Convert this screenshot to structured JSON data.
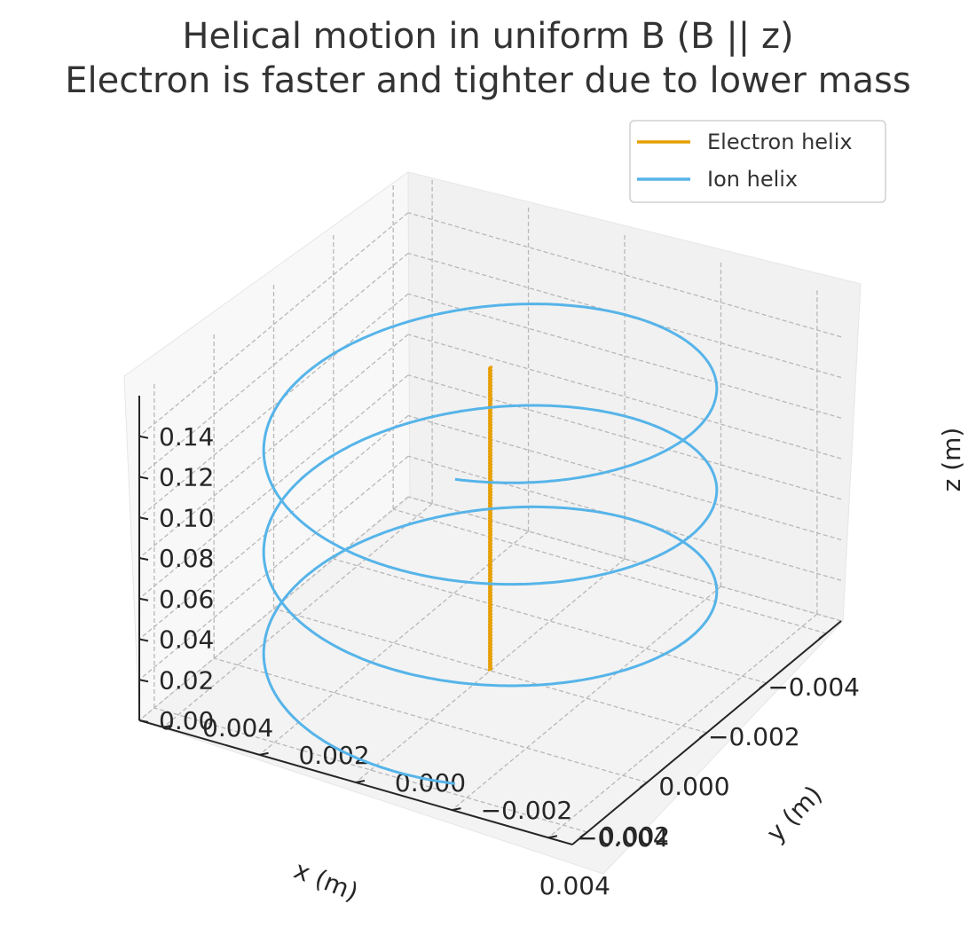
{
  "chart_data": {
    "type": "line3d",
    "title": "Helical motion in uniform B (B || z)",
    "subtitle": "Electron is faster and tighter due to lower mass",
    "xlabel": "x (m)",
    "ylabel": "y (m)",
    "zlabel": "z (m)",
    "xlim": [
      -0.0045,
      0.0045
    ],
    "ylim": [
      -0.0045,
      0.0045
    ],
    "zlim": [
      0.0,
      0.16
    ],
    "xticks": [
      "−0.004",
      "−0.002",
      "0.000",
      "0.002",
      "0.004"
    ],
    "yticks": [
      "−0.004",
      "−0.002",
      "0.000",
      "0.002",
      "0.004"
    ],
    "zticks": [
      "0.00",
      "0.02",
      "0.04",
      "0.06",
      "0.08",
      "0.10",
      "0.12",
      "0.14"
    ],
    "grid": true,
    "legend_position": "top-right",
    "series": [
      {
        "name": "Electron helix",
        "color": "#E69F00",
        "center": [
          0.0,
          0.0
        ],
        "radius": 1e-05,
        "z_range": [
          0.0,
          0.15
        ],
        "turns": 100
      },
      {
        "name": "Ion helix",
        "color": "#56B4E9",
        "center": [
          0.0,
          0.0
        ],
        "radius": 0.004,
        "z_range": [
          0.0,
          0.15
        ],
        "turns": 3
      }
    ]
  }
}
